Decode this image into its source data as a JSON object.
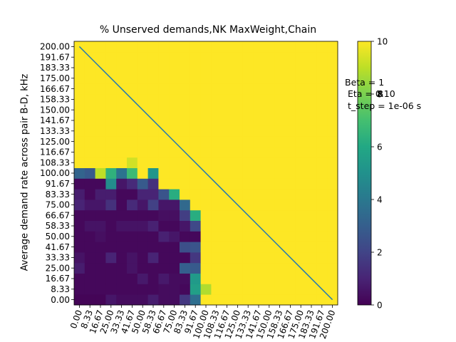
{
  "chart_data": {
    "type": "heatmap",
    "title": "% Unserved demands,NK MaxWeight,Chain",
    "ylabel": "Average demand rate across pair B-D, kHz",
    "xlabel": "",
    "x_ticks": [
      "0.00",
      "8.33",
      "16.67",
      "25.00",
      "33.33",
      "41.67",
      "50.00",
      "58.33",
      "66.67",
      "75.00",
      "83.33",
      "91.67",
      "100.00",
      "108.33",
      "116.67",
      "125.00",
      "133.33",
      "141.67",
      "150.00",
      "158.33",
      "166.67",
      "175.00",
      "183.33",
      "191.67",
      "200.00"
    ],
    "y_ticks": [
      "0.00",
      "8.33",
      "16.67",
      "25.00",
      "33.33",
      "41.67",
      "50.00",
      "58.33",
      "66.67",
      "75.00",
      "83.33",
      "91.67",
      "100.00",
      "108.33",
      "116.67",
      "125.00",
      "133.33",
      "141.67",
      "150.00",
      "158.33",
      "166.67",
      "175.00",
      "183.33",
      "191.67",
      "200.00"
    ],
    "colorbar": {
      "min": 0,
      "max": 10,
      "ticks": [
        0,
        2,
        4,
        6,
        8,
        10
      ],
      "colormap": "viridis"
    },
    "values_bottom_to_top": [
      [
        0.1,
        0.1,
        0.1,
        0.6,
        0.3,
        0.3,
        0.3,
        0.8,
        0.3,
        0.3,
        1.6,
        3.6,
        10,
        10,
        10,
        10,
        10,
        10,
        10,
        10,
        10,
        10,
        10,
        10,
        10
      ],
      [
        0.2,
        0.2,
        0.2,
        0.2,
        0.2,
        0.2,
        0.2,
        0.2,
        0.3,
        0.3,
        0.2,
        5.6,
        8.8,
        10,
        10,
        10,
        10,
        10,
        10,
        10,
        10,
        10,
        10,
        10,
        10
      ],
      [
        0.2,
        0.2,
        0.2,
        0.2,
        0.2,
        0.2,
        0.7,
        0.2,
        0.7,
        0.3,
        0.3,
        5.4,
        10,
        10,
        10,
        10,
        10,
        10,
        10,
        10,
        10,
        10,
        10,
        10,
        10
      ],
      [
        0.8,
        0.2,
        0.2,
        0.2,
        0.2,
        0.5,
        0.2,
        0.2,
        0.2,
        0.2,
        3.0,
        2.8,
        10,
        10,
        10,
        10,
        10,
        10,
        10,
        10,
        10,
        10,
        10,
        10,
        10
      ],
      [
        0.5,
        0.2,
        0.2,
        1.0,
        0.2,
        0.5,
        0.2,
        1.0,
        0.2,
        0.2,
        0.2,
        1.6,
        10,
        10,
        10,
        10,
        10,
        10,
        10,
        10,
        10,
        10,
        10,
        10,
        10
      ],
      [
        0.2,
        0.2,
        0.2,
        0.2,
        0.2,
        0.2,
        0.2,
        0.2,
        0.2,
        0.2,
        2.4,
        2.6,
        10,
        10,
        10,
        10,
        10,
        10,
        10,
        10,
        10,
        10,
        10,
        10,
        10
      ],
      [
        0.2,
        0.2,
        0.4,
        0.2,
        0.2,
        0.2,
        0.2,
        0.2,
        0.9,
        0.6,
        0.2,
        0.2,
        10,
        10,
        10,
        10,
        10,
        10,
        10,
        10,
        10,
        10,
        10,
        10,
        10
      ],
      [
        0.2,
        0.5,
        0.5,
        0.2,
        0.5,
        0.5,
        0.5,
        0.9,
        0.2,
        0.2,
        0.6,
        2.2,
        10,
        10,
        10,
        10,
        10,
        10,
        10,
        10,
        10,
        10,
        10,
        10,
        10
      ],
      [
        0.2,
        0.2,
        0.2,
        0.2,
        0.2,
        0.2,
        0.2,
        0.2,
        0.4,
        0.4,
        1.8,
        6.2,
        10,
        10,
        10,
        10,
        10,
        10,
        10,
        10,
        10,
        10,
        10,
        10,
        10
      ],
      [
        1.0,
        0.6,
        0.6,
        1.4,
        0.2,
        1.2,
        0.6,
        1.9,
        0.6,
        0.6,
        3.4,
        10,
        10,
        10,
        10,
        10,
        10,
        10,
        10,
        10,
        10,
        10,
        10,
        10,
        10
      ],
      [
        0.8,
        0.2,
        0.8,
        0.8,
        0.2,
        0.2,
        1.0,
        1.0,
        2.6,
        6.2,
        10,
        10,
        10,
        10,
        10,
        10,
        10,
        10,
        10,
        10,
        10,
        10,
        10,
        10,
        10
      ],
      [
        0.2,
        0.2,
        0.2,
        4.8,
        0.6,
        1.2,
        2.8,
        1.4,
        10,
        10,
        10,
        10,
        10,
        10,
        10,
        10,
        10,
        10,
        10,
        10,
        10,
        10,
        10,
        10,
        10
      ],
      [
        3.2,
        2.8,
        9.0,
        6.4,
        3.8,
        6.8,
        10,
        5.2,
        10,
        10,
        10,
        10,
        10,
        10,
        10,
        10,
        10,
        10,
        10,
        10,
        10,
        10,
        10,
        10,
        10
      ],
      [
        10,
        10,
        10,
        10,
        10,
        9.3,
        10,
        10,
        10,
        10,
        10,
        10,
        10,
        10,
        10,
        10,
        10,
        10,
        10,
        10,
        10,
        10,
        10,
        10,
        10
      ],
      [
        10,
        10,
        10,
        10,
        10,
        10,
        10,
        10,
        10,
        10,
        10,
        10,
        10,
        10,
        10,
        10,
        10,
        10,
        10,
        10,
        10,
        10,
        10,
        10,
        10
      ],
      [
        10,
        10,
        10,
        10,
        10,
        10,
        10,
        10,
        10,
        10,
        10,
        10,
        10,
        10,
        10,
        10,
        10,
        10,
        10,
        10,
        10,
        10,
        10,
        10,
        10
      ],
      [
        10,
        10,
        10,
        10,
        10,
        10,
        10,
        10,
        10,
        10,
        10,
        10,
        10,
        10,
        10,
        10,
        10,
        10,
        10,
        10,
        10,
        10,
        10,
        10,
        10
      ],
      [
        10,
        10,
        10,
        10,
        10,
        10,
        10,
        10,
        10,
        10,
        10,
        10,
        10,
        10,
        10,
        10,
        10,
        10,
        10,
        10,
        10,
        10,
        10,
        10,
        10
      ],
      [
        10,
        10,
        10,
        10,
        10,
        10,
        10,
        10,
        10,
        10,
        10,
        10,
        10,
        10,
        10,
        10,
        10,
        10,
        10,
        10,
        10,
        10,
        10,
        10,
        10
      ],
      [
        10,
        10,
        10,
        10,
        10,
        10,
        10,
        10,
        10,
        10,
        10,
        10,
        10,
        10,
        10,
        10,
        10,
        10,
        10,
        10,
        10,
        10,
        10,
        10,
        10
      ],
      [
        10,
        10,
        10,
        10,
        10,
        10,
        10,
        10,
        10,
        10,
        10,
        10,
        10,
        10,
        10,
        10,
        10,
        10,
        10,
        10,
        10,
        10,
        10,
        10,
        10
      ],
      [
        10,
        10,
        10,
        10,
        10,
        10,
        10,
        10,
        10,
        10,
        10,
        10,
        10,
        10,
        10,
        10,
        10,
        10,
        10,
        10,
        10,
        10,
        10,
        10,
        10
      ],
      [
        10,
        10,
        10,
        10,
        10,
        10,
        10,
        10,
        10,
        10,
        10,
        10,
        10,
        10,
        10,
        10,
        10,
        10,
        10,
        10,
        10,
        10,
        10,
        10,
        10
      ],
      [
        10,
        10,
        10,
        10,
        10,
        10,
        10,
        10,
        10,
        10,
        10,
        10,
        10,
        10,
        10,
        10,
        10,
        10,
        10,
        10,
        10,
        10,
        10,
        10,
        10
      ],
      [
        10,
        10,
        10,
        10,
        10,
        10,
        10,
        10,
        10,
        10,
        10,
        10,
        10,
        10,
        10,
        10,
        10,
        10,
        10,
        10,
        10,
        10,
        10,
        10,
        10
      ]
    ],
    "overlay_line": {
      "from": [
        0,
        200
      ],
      "to": [
        200,
        0
      ],
      "color": "#1f77b4"
    },
    "annotations": [
      "Beta = 1",
      "Eta = 0.10",
      "t_step = 1e-06 s",
      "8"
    ]
  }
}
